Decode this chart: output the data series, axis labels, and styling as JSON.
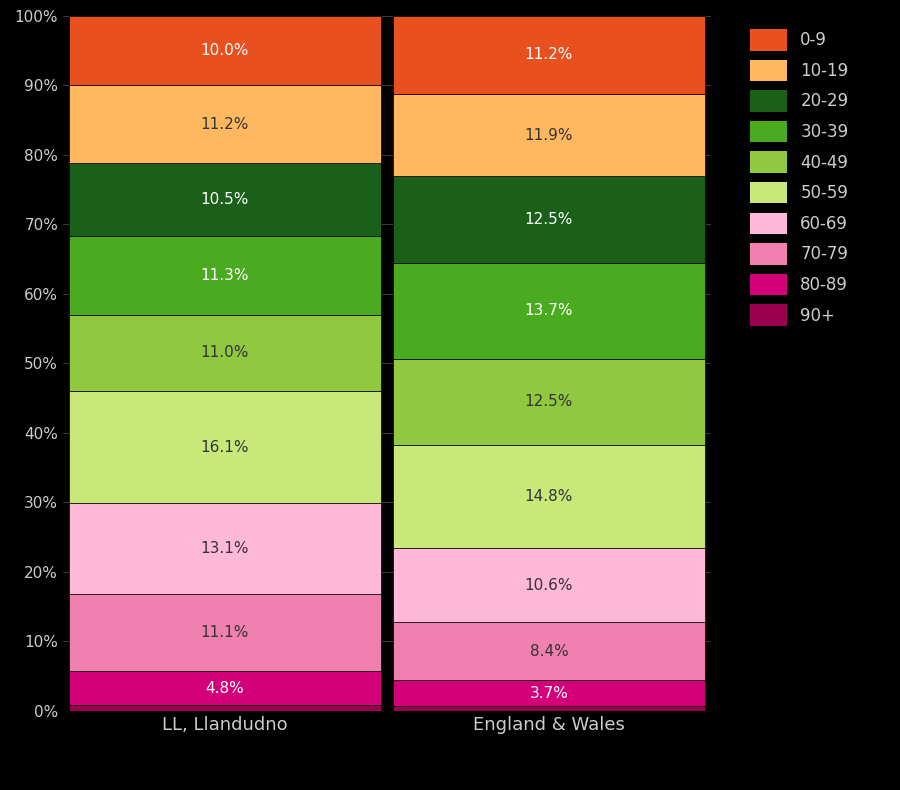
{
  "categories": [
    "LL, Llandudno",
    "England & Wales"
  ],
  "age_groups": [
    "90+",
    "80-89",
    "70-79",
    "60-69",
    "50-59",
    "40-49",
    "30-39",
    "20-29",
    "10-19",
    "0-9"
  ],
  "colors": [
    "#9b0050",
    "#d4007a",
    "#f080b0",
    "#ffb8d8",
    "#c8e87a",
    "#90c840",
    "#4aaa20",
    "#1a6018",
    "#ffb860",
    "#e85020"
  ],
  "values": {
    "LL, Llandudno": [
      0.9,
      4.8,
      11.1,
      13.1,
      16.1,
      11.0,
      11.3,
      10.5,
      11.2,
      10.0
    ],
    "England & Wales": [
      0.7,
      3.7,
      8.4,
      10.6,
      14.8,
      12.5,
      13.7,
      12.5,
      11.9,
      11.2
    ]
  },
  "labels": {
    "LL, Llandudno": [
      "",
      "4.8%",
      "11.1%",
      "13.1%",
      "16.1%",
      "11.0%",
      "11.3%",
      "10.5%",
      "11.2%",
      "10.0%"
    ],
    "England & Wales": [
      "",
      "3.7%",
      "8.4%",
      "10.6%",
      "14.8%",
      "12.5%",
      "13.7%",
      "12.5%",
      "11.9%",
      "11.2%"
    ]
  },
  "text_colors": {
    "90+": "white",
    "80-89": "white",
    "70-79": "#333333",
    "60-69": "#333333",
    "50-59": "#333333",
    "40-49": "#333333",
    "30-39": "white",
    "20-29": "white",
    "10-19": "#333333",
    "0-9": "white"
  },
  "legend_labels": [
    "0-9",
    "10-19",
    "20-29",
    "30-39",
    "40-49",
    "50-59",
    "60-69",
    "70-79",
    "80-89",
    "90+"
  ],
  "legend_colors": [
    "#e85020",
    "#ffb860",
    "#1a6018",
    "#4aaa20",
    "#90c840",
    "#c8e87a",
    "#ffb8d8",
    "#f080b0",
    "#d4007a",
    "#9b0050"
  ],
  "background_color": "#000000",
  "text_color": "#cccccc",
  "figsize": [
    9.0,
    7.9
  ],
  "dpi": 100
}
